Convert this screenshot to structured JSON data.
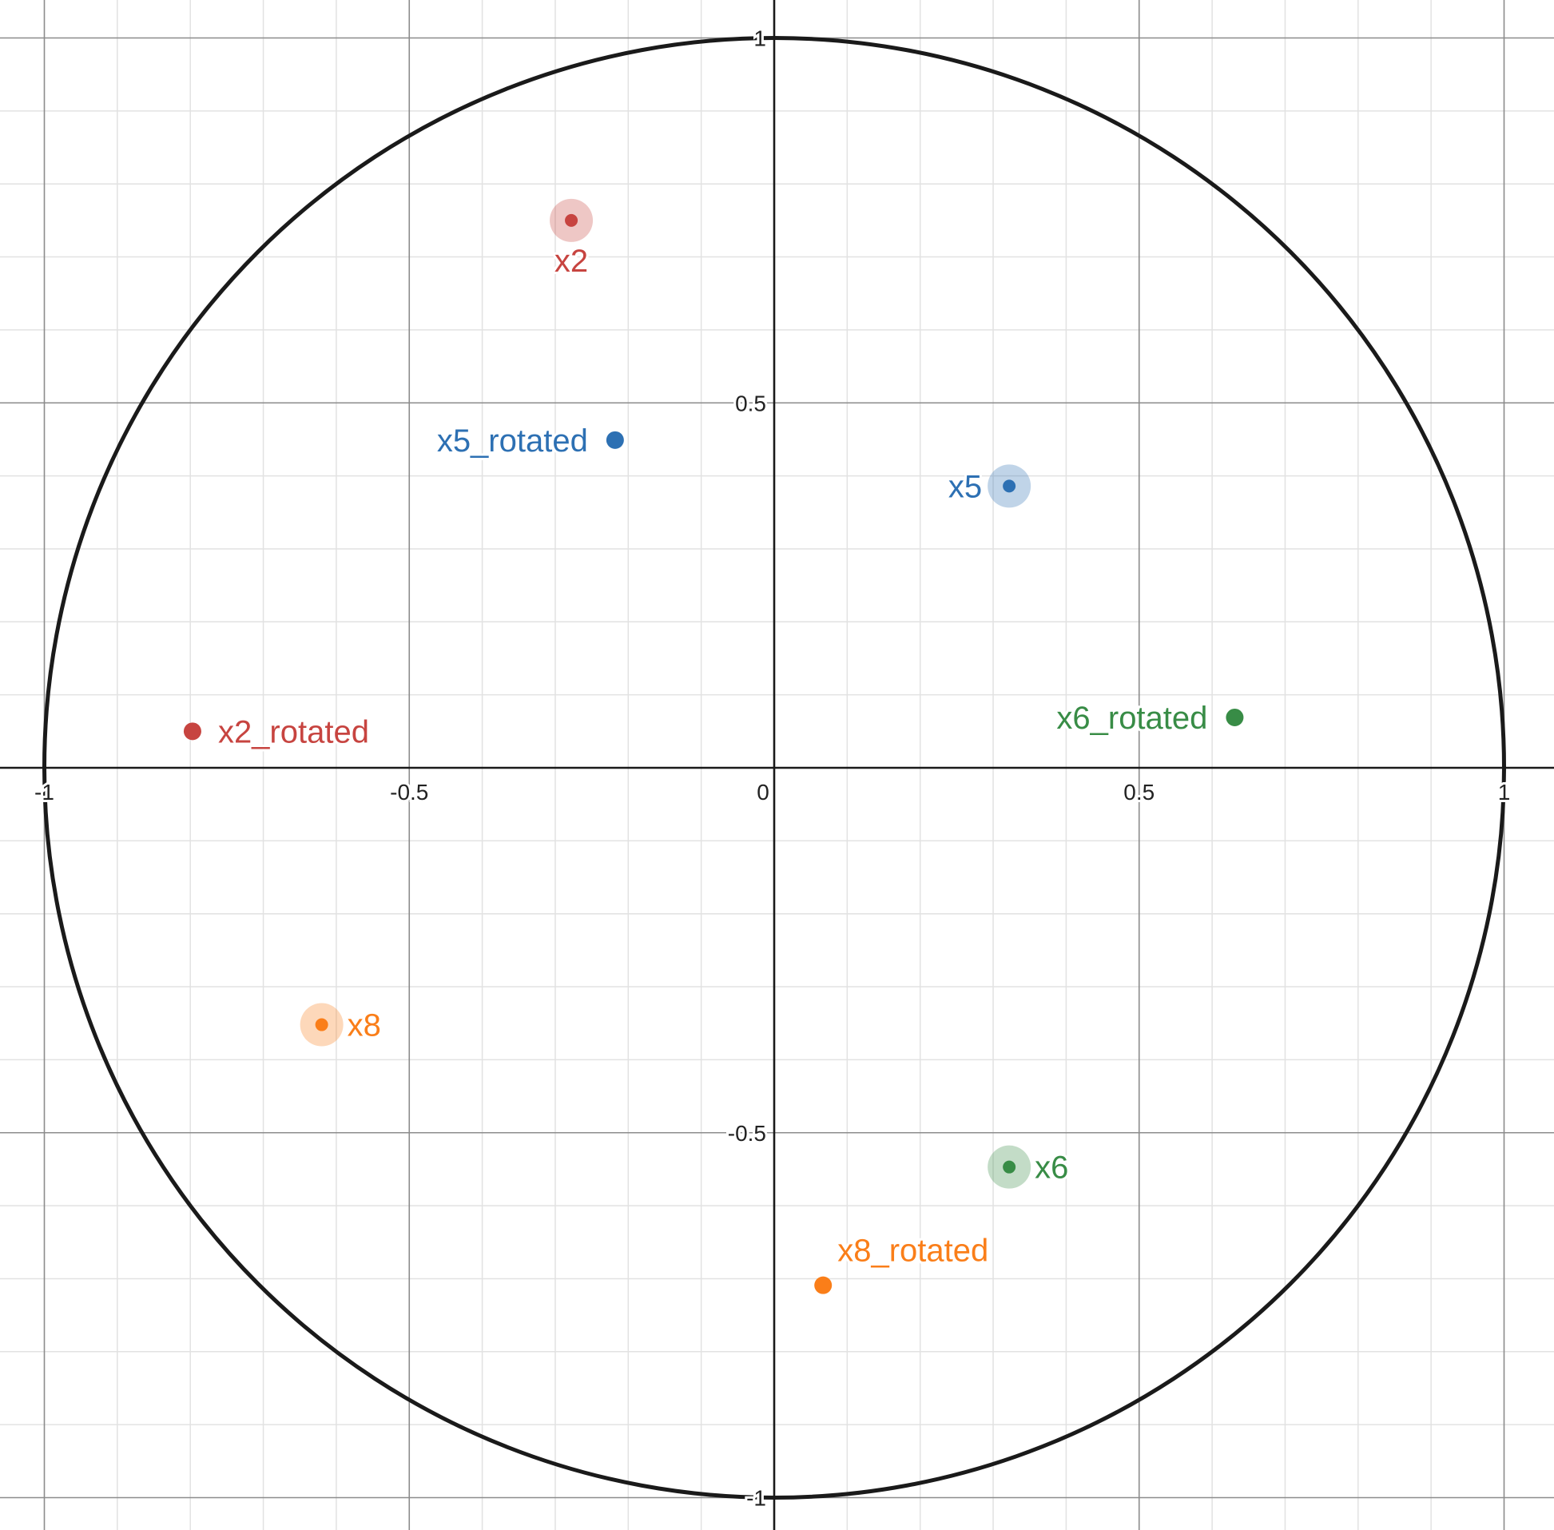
{
  "chart_data": {
    "type": "scatter",
    "title": "",
    "xlabel": "",
    "ylabel": "",
    "xlim": [
      -1.05,
      1.05
    ],
    "ylim": [
      -1.05,
      1.05
    ],
    "grid": true,
    "major_step": 0.5,
    "minor_step": 0.1,
    "x_ticks": [
      {
        "value": -1,
        "label": "-1"
      },
      {
        "value": -0.5,
        "label": "-0.5"
      },
      {
        "value": 0,
        "label": "0"
      },
      {
        "value": 0.5,
        "label": "0.5"
      },
      {
        "value": 1,
        "label": "1"
      }
    ],
    "y_ticks": [
      {
        "value": 1,
        "label": "1"
      },
      {
        "value": 0.5,
        "label": "0.5"
      },
      {
        "value": -0.5,
        "label": "-0.5"
      },
      {
        "value": -1,
        "label": "-1"
      }
    ],
    "unit_circle": {
      "radius": 1
    },
    "points": [
      {
        "label": "x2",
        "x": -0.278,
        "y": 0.75,
        "color": "#c74440",
        "highlighted": true,
        "label_pos": "below"
      },
      {
        "label": "x2_rotated",
        "x": -0.797,
        "y": 0.05,
        "color": "#c74440",
        "highlighted": false,
        "label_pos": "right"
      },
      {
        "label": "x5",
        "x": 0.322,
        "y": 0.386,
        "color": "#2d70b3",
        "highlighted": true,
        "label_pos": "left"
      },
      {
        "label": "x5_rotated",
        "x": -0.218,
        "y": 0.449,
        "color": "#2d70b3",
        "highlighted": false,
        "label_pos": "left"
      },
      {
        "label": "x6",
        "x": 0.322,
        "y": -0.547,
        "color": "#388c46",
        "highlighted": true,
        "label_pos": "right"
      },
      {
        "label": "x6_rotated",
        "x": 0.631,
        "y": 0.069,
        "color": "#388c46",
        "highlighted": false,
        "label_pos": "left"
      },
      {
        "label": "x8",
        "x": -0.62,
        "y": -0.352,
        "color": "#fa7e19",
        "highlighted": true,
        "label_pos": "right"
      },
      {
        "label": "x8_rotated",
        "x": 0.067,
        "y": -0.709,
        "color": "#fa7e19",
        "highlighted": false,
        "label_pos": "above-right"
      }
    ]
  }
}
